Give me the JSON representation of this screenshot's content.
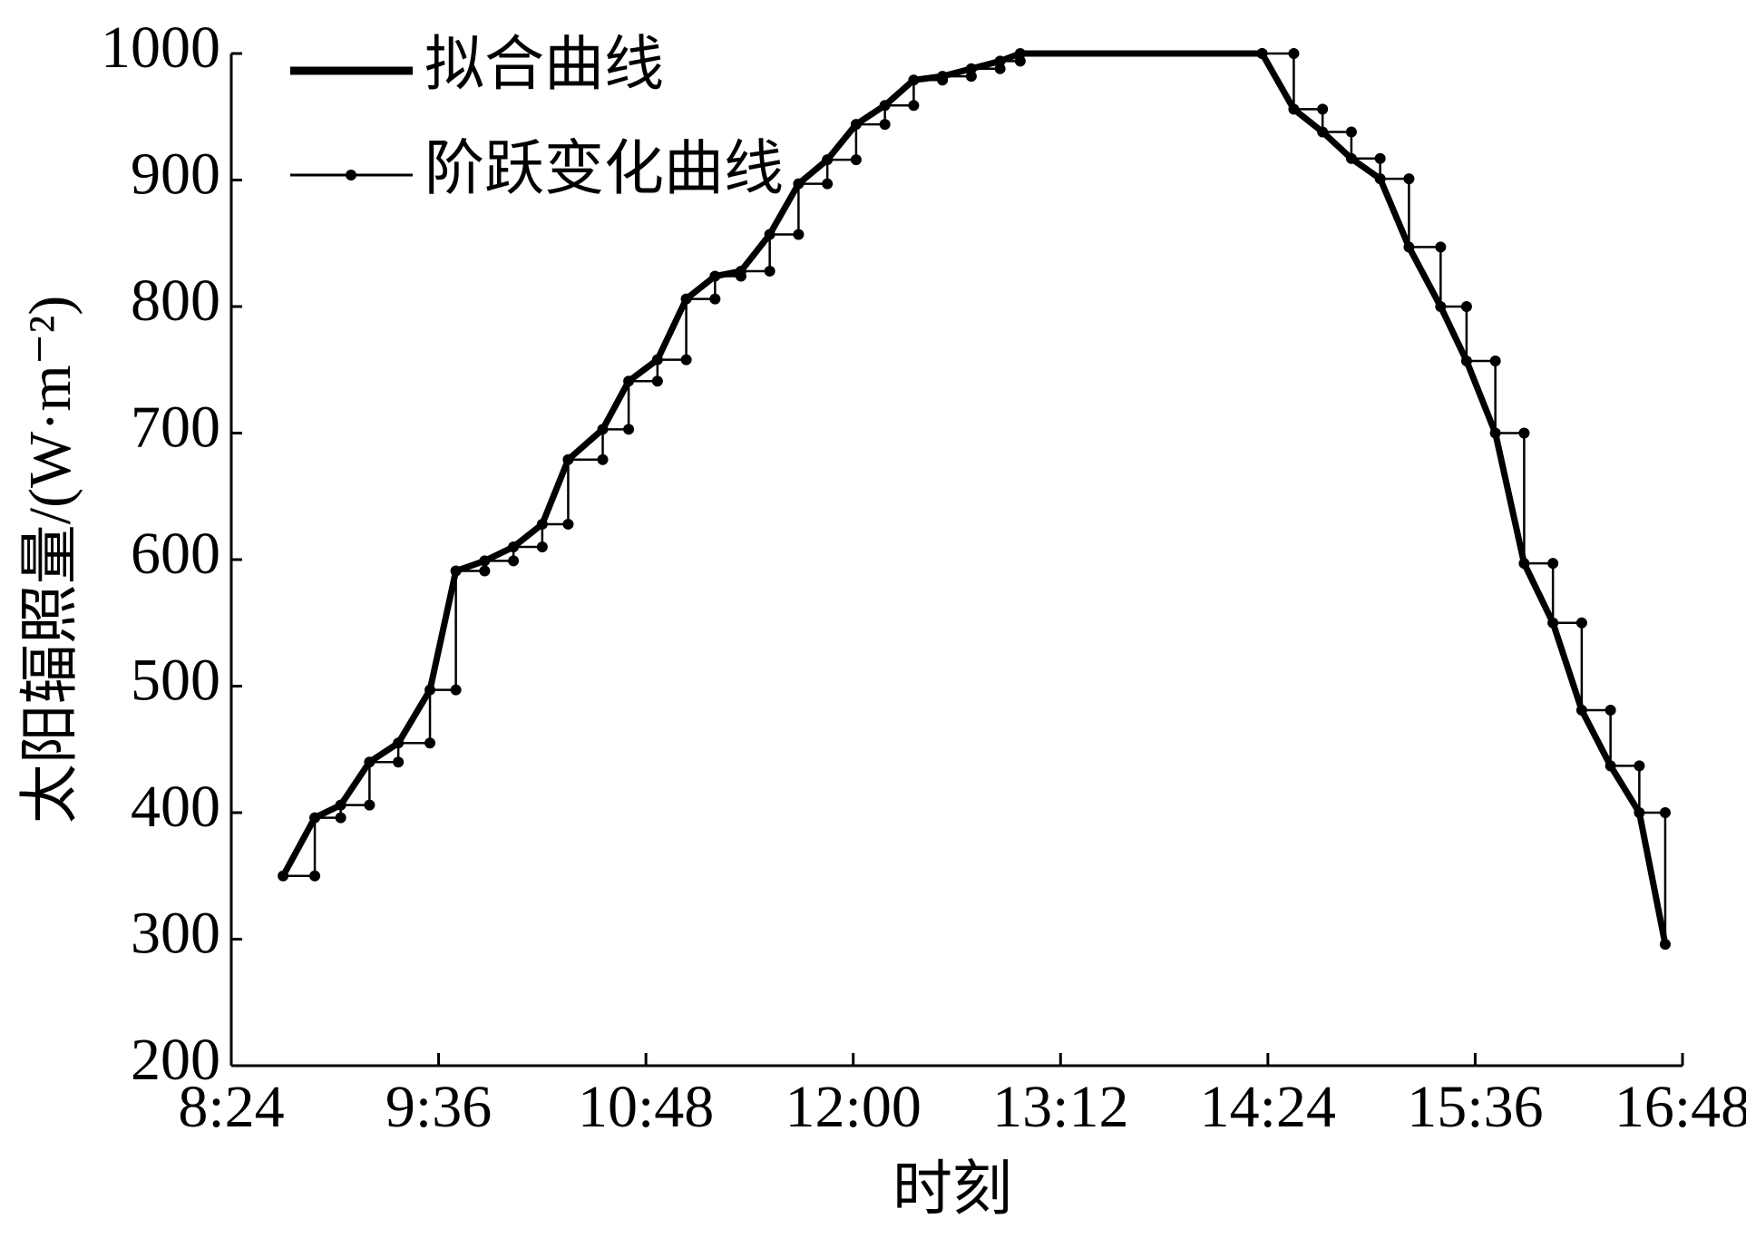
{
  "chart_data": {
    "type": "line",
    "x_label": "时刻",
    "y_label": "太阳辐照量/(W·m⁻²)",
    "xlim": [
      504,
      1008
    ],
    "xticks": [
      {
        "value": 504,
        "label": "8:24"
      },
      {
        "value": 576,
        "label": "9:36"
      },
      {
        "value": 648,
        "label": "10:48"
      },
      {
        "value": 720,
        "label": "12:00"
      },
      {
        "value": 792,
        "label": "13:12"
      },
      {
        "value": 864,
        "label": "14:24"
      },
      {
        "value": 936,
        "label": "15:36"
      },
      {
        "value": 1008,
        "label": "16:48"
      }
    ],
    "ylim": [
      200,
      1000
    ],
    "yticks": [
      200,
      300,
      400,
      500,
      600,
      700,
      800,
      900,
      1000
    ],
    "legend": "upper left",
    "series": [
      {
        "name": "拟合曲线",
        "color": "#000000",
        "style": "thick",
        "x": [
          522,
          533,
          542,
          552,
          562,
          573,
          582,
          592,
          602,
          612,
          621,
          633,
          642,
          652,
          662,
          672,
          681,
          691,
          701,
          711,
          721,
          731,
          741,
          751,
          761,
          771,
          778,
          862,
          873,
          883,
          893,
          903,
          913,
          924,
          933,
          943,
          953,
          963,
          973,
          983,
          993,
          1002
        ],
        "values": [
          350,
          396,
          406,
          440,
          455,
          497,
          591,
          599,
          610,
          628,
          679,
          703,
          741,
          758,
          806,
          824,
          828,
          857,
          897,
          916,
          944,
          959,
          979,
          982,
          988,
          994,
          1000,
          1000,
          956,
          938,
          917,
          901,
          847,
          800,
          757,
          700,
          597,
          550,
          481,
          437,
          400,
          296
        ]
      },
      {
        "name": "阶跃变化曲线",
        "color": "#000000",
        "style": "dotted-step",
        "x": [
          522,
          533,
          533,
          542,
          542,
          552,
          552,
          562,
          562,
          573,
          573,
          582,
          582,
          592,
          592,
          602,
          602,
          612,
          612,
          621,
          621,
          633,
          633,
          642,
          642,
          652,
          652,
          662,
          662,
          672,
          672,
          681,
          681,
          691,
          691,
          701,
          701,
          711,
          711,
          721,
          721,
          731,
          731,
          741,
          741,
          751,
          751,
          761,
          761,
          771,
          771,
          778,
          778,
          862,
          862,
          873,
          873,
          883,
          883,
          893,
          893,
          903,
          903,
          913,
          913,
          924,
          924,
          933,
          933,
          943,
          943,
          953,
          953,
          963,
          963,
          973,
          973,
          983,
          983,
          993,
          993,
          1002,
          1002
        ],
        "values": [
          350,
          350,
          396,
          396,
          406,
          406,
          440,
          440,
          455,
          455,
          497,
          497,
          591,
          591,
          599,
          599,
          610,
          610,
          628,
          628,
          679,
          679,
          703,
          703,
          741,
          741,
          758,
          758,
          806,
          806,
          824,
          824,
          828,
          828,
          857,
          857,
          897,
          897,
          916,
          916,
          944,
          944,
          959,
          959,
          979,
          979,
          982,
          982,
          988,
          988,
          994,
          994,
          1000,
          1000,
          1000,
          1000,
          956,
          956,
          938,
          938,
          917,
          917,
          901,
          901,
          847,
          847,
          800,
          800,
          757,
          757,
          700,
          700,
          597,
          597,
          550,
          550,
          481,
          481,
          437,
          437,
          400,
          400,
          296
        ]
      }
    ]
  }
}
